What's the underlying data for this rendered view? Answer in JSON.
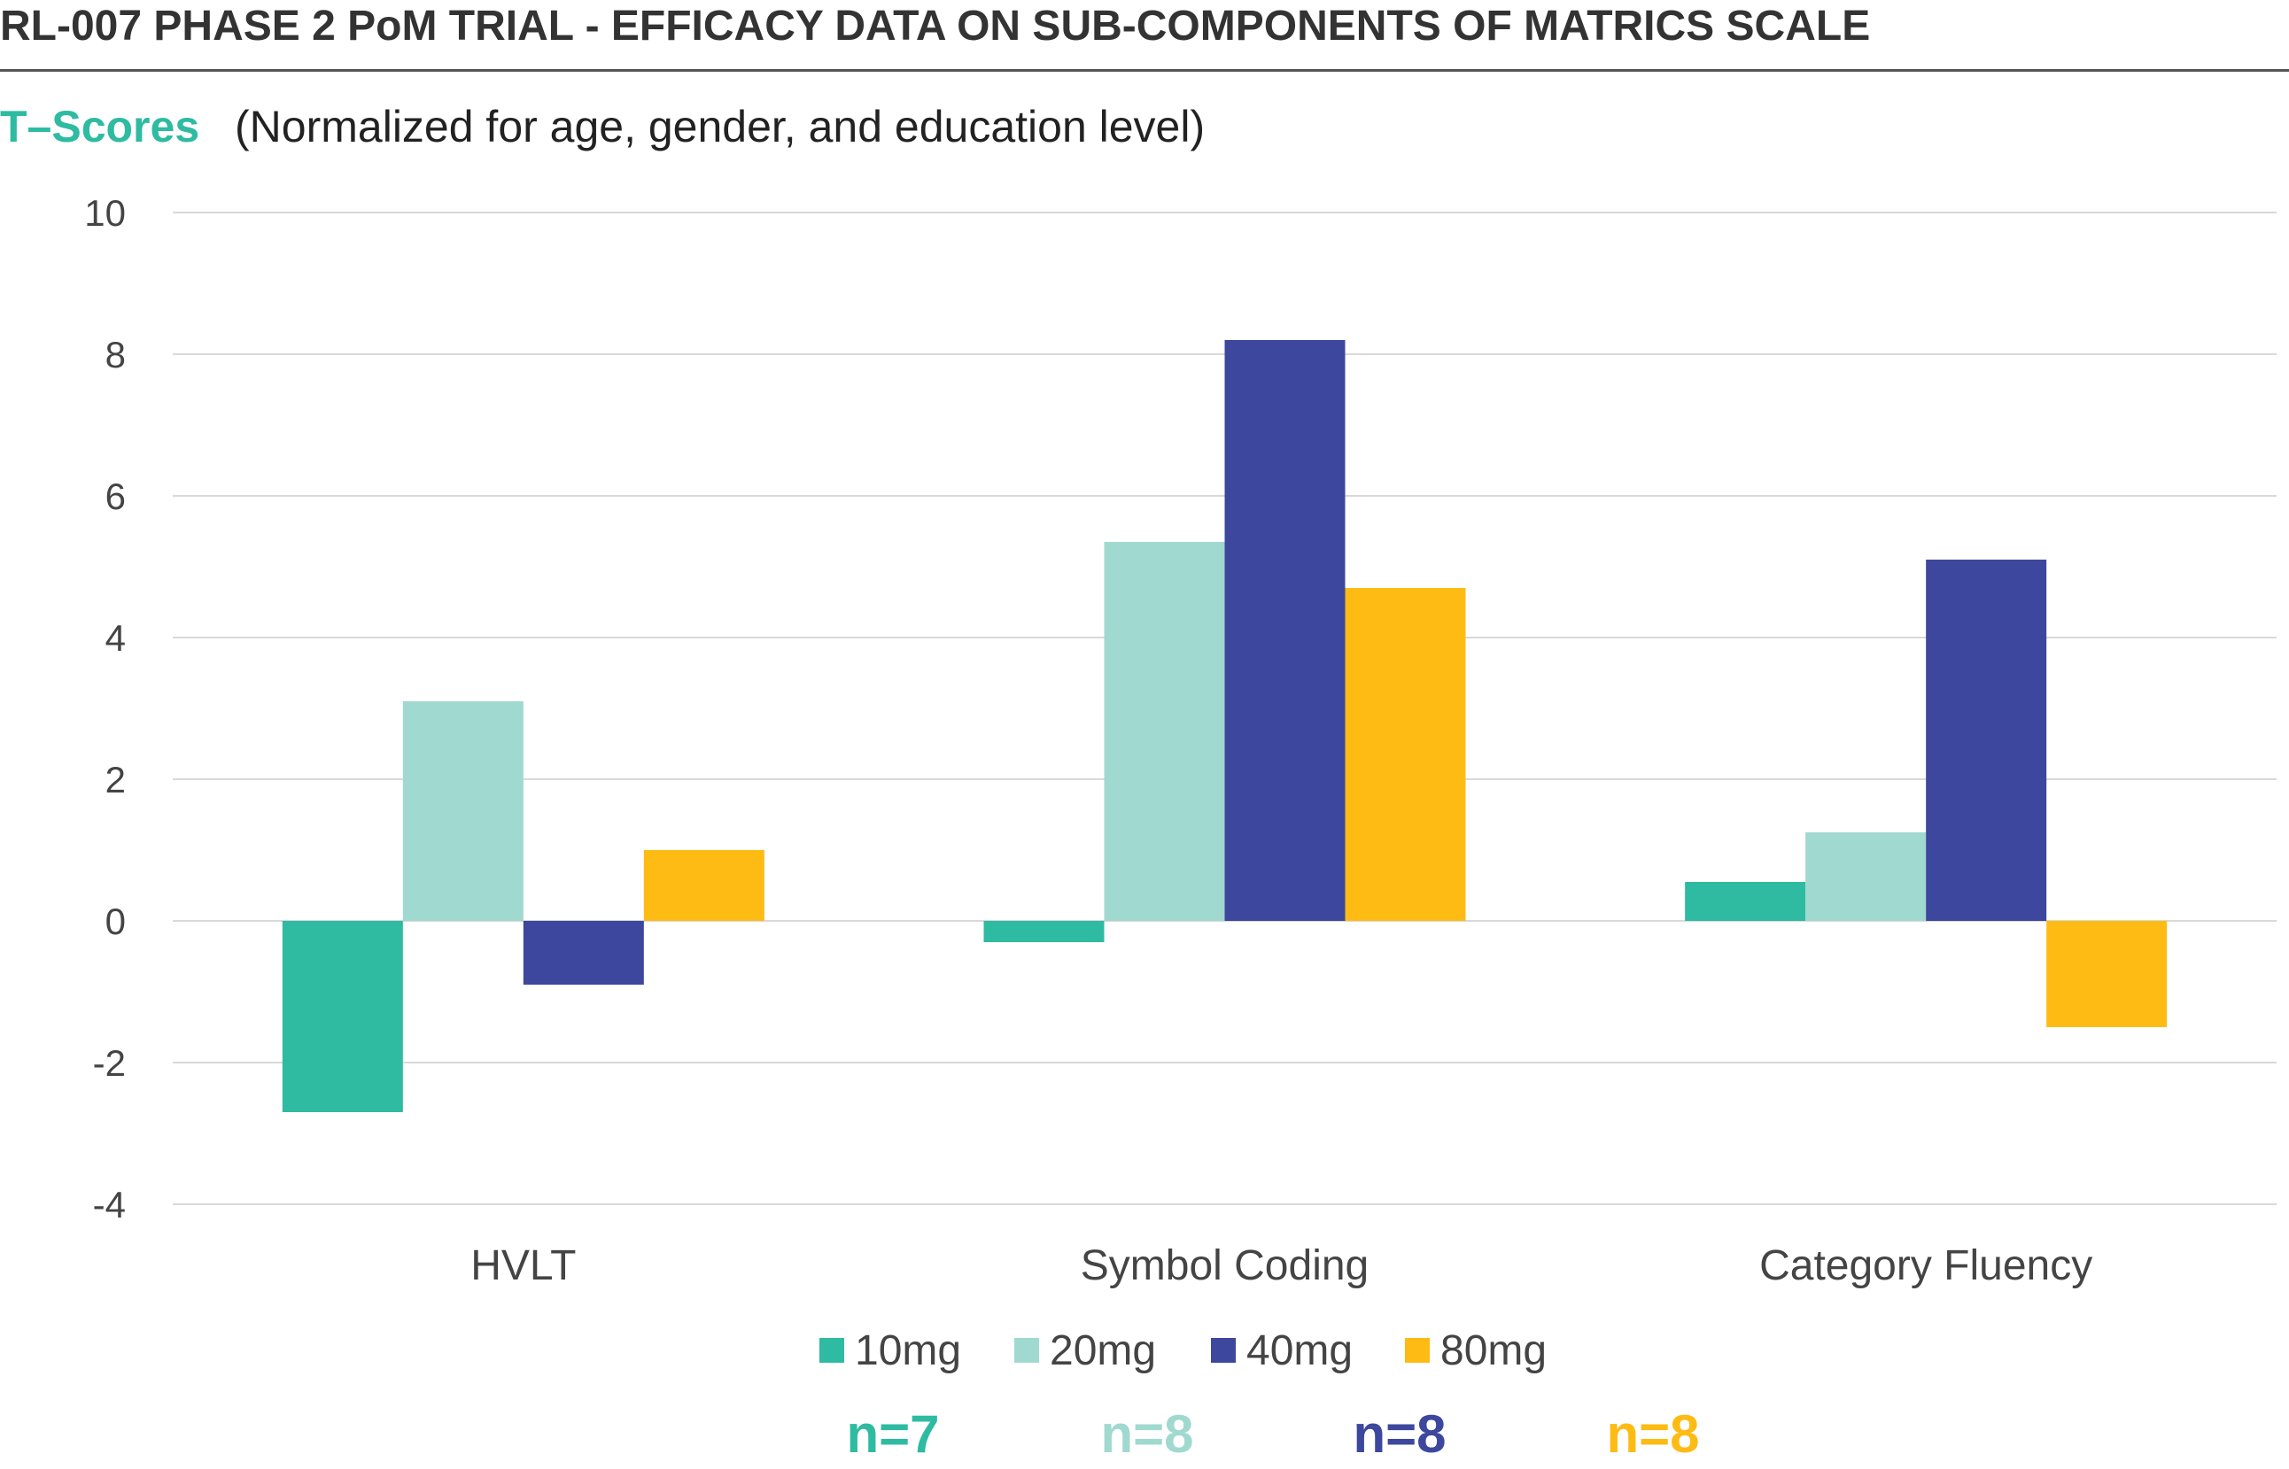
{
  "header": {
    "title": "RL-007 PHASE 2 PoM TRIAL - EFFICACY DATA ON SUB-COMPONENTS OF MATRICS SCALE",
    "metric": "T–Scores",
    "note": "(Normalized for age, gender, and education level)"
  },
  "chart_data": {
    "type": "bar",
    "categories": [
      "HVLT",
      "Symbol Coding",
      "Category Fluency"
    ],
    "series": [
      {
        "name": "10mg",
        "color": "#2ebba1",
        "values": [
          -2.7,
          -0.3,
          0.55
        ]
      },
      {
        "name": "20mg",
        "color": "#a0d9cf",
        "values": [
          3.1,
          5.35,
          1.25
        ]
      },
      {
        "name": "40mg",
        "color": "#3c479d",
        "values": [
          -0.9,
          8.2,
          5.1
        ]
      },
      {
        "name": "80mg",
        "color": "#fdbb14",
        "values": [
          1.0,
          4.7,
          -1.5
        ]
      }
    ],
    "ylim": [
      -4,
      10
    ],
    "yticks": [
      "10",
      "8",
      "6",
      "4",
      "2",
      "0",
      "-2",
      "-4"
    ],
    "grid": true,
    "legend_position": "bottom"
  },
  "sample_sizes": [
    {
      "label": "n=7",
      "color": "#2ebba1"
    },
    {
      "label": "n=8",
      "color": "#a0d9cf"
    },
    {
      "label": "n=8",
      "color": "#3c479d"
    },
    {
      "label": "n=8",
      "color": "#fdbb14"
    }
  ]
}
